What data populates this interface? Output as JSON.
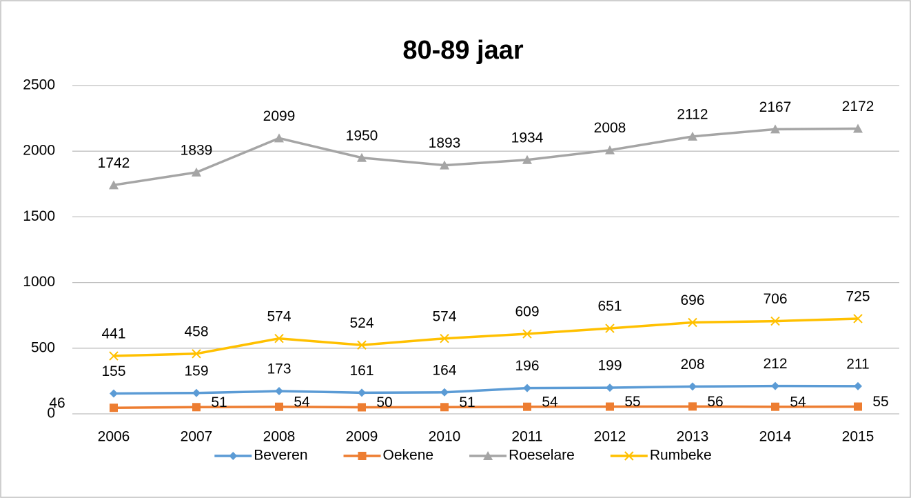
{
  "chart_data": {
    "type": "line",
    "title": "80-89 jaar",
    "categories": [
      "2006",
      "2007",
      "2008",
      "2009",
      "2010",
      "2011",
      "2012",
      "2013",
      "2014",
      "2015"
    ],
    "series": [
      {
        "name": "Beveren",
        "color": "#5b9bd5",
        "marker": "diamond",
        "values": [
          155,
          159,
          173,
          161,
          164,
          196,
          199,
          208,
          212,
          211
        ]
      },
      {
        "name": "Oekene",
        "color": "#ed7d31",
        "marker": "square",
        "values": [
          46,
          51,
          54,
          50,
          51,
          54,
          55,
          56,
          54,
          55
        ]
      },
      {
        "name": "Roeselare",
        "color": "#a5a5a5",
        "marker": "triangle",
        "values": [
          1742,
          1839,
          2099,
          1950,
          1893,
          1934,
          2008,
          2112,
          2167,
          2172
        ]
      },
      {
        "name": "Rumbeke",
        "color": "#ffc000",
        "marker": "x",
        "values": [
          441,
          458,
          574,
          524,
          574,
          609,
          651,
          696,
          706,
          725
        ]
      }
    ],
    "ylim": [
      0,
      2500
    ],
    "yticks": [
      0,
      500,
      1000,
      1500,
      2000,
      2500
    ],
    "grid": true,
    "legend": "bottom"
  }
}
